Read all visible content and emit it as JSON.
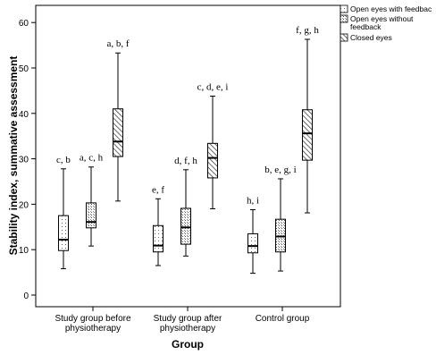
{
  "chart_data": {
    "type": "boxplot",
    "title": "",
    "xlabel": "Group",
    "ylabel": "Stability index, summative assessment",
    "ylim": [
      0,
      60
    ],
    "yticks": [
      0,
      10,
      20,
      30,
      40,
      50,
      60
    ],
    "categories": [
      "Study group before physiotherapy",
      "Study group after physiotherapy",
      "Control group"
    ],
    "legend_position": "top-right",
    "series": [
      {
        "name": "Open eyes with feedbac",
        "pattern": "dots",
        "boxes": [
          {
            "min": 5.8,
            "q1": 9.8,
            "median": 12.2,
            "q3": 17.5,
            "max": 27.8,
            "label": "c, b"
          },
          {
            "min": 6.5,
            "q1": 9.5,
            "median": 10.9,
            "q3": 15.3,
            "max": 21.2,
            "label": "e, f"
          },
          {
            "min": 4.8,
            "q1": 9.3,
            "median": 10.8,
            "q3": 13.5,
            "max": 18.8,
            "label": "h, i"
          }
        ]
      },
      {
        "name": "Open eyes without feedback",
        "pattern": "dense-dots",
        "boxes": [
          {
            "min": 10.8,
            "q1": 14.8,
            "median": 16.1,
            "q3": 20.3,
            "max": 28.2,
            "label": "a, c, h"
          },
          {
            "min": 8.6,
            "q1": 11.2,
            "median": 14.9,
            "q3": 19.1,
            "max": 27.6,
            "label": "d, f, h"
          },
          {
            "min": 5.3,
            "q1": 9.5,
            "median": 12.9,
            "q3": 16.7,
            "max": 25.6,
            "label": "b, e, g, i"
          }
        ]
      },
      {
        "name": "Closed eyes",
        "pattern": "hatch",
        "boxes": [
          {
            "min": 20.7,
            "q1": 30.5,
            "median": 33.8,
            "q3": 41.0,
            "max": 53.3,
            "label": "a, b, f"
          },
          {
            "min": 19.0,
            "q1": 25.8,
            "median": 30.2,
            "q3": 33.4,
            "max": 43.8,
            "label": "c, d, e, i"
          },
          {
            "min": 18.1,
            "q1": 29.7,
            "median": 35.6,
            "q3": 40.8,
            "max": 56.3,
            "label": "f, g, h"
          }
        ]
      }
    ]
  },
  "category_label_lines": [
    [
      "Study group before",
      "physiotherapy"
    ],
    [
      "Study group after",
      "physiotherapy"
    ],
    [
      "Control group"
    ]
  ],
  "legend_label_lines": [
    [
      "Open eyes with feedbac"
    ],
    [
      "Open eyes without",
      "feedback"
    ],
    [
      "Closed eyes"
    ]
  ]
}
